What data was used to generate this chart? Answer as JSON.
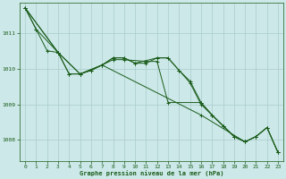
{
  "title": "Graphe pression niveau de la mer (hPa)",
  "background_color": "#cce8e8",
  "grid_color": "#aacccc",
  "line_color": "#1a5c1a",
  "xlim": [
    -0.5,
    23.5
  ],
  "ylim": [
    1007.4,
    1011.85
  ],
  "yticks": [
    1008,
    1009,
    1010,
    1011
  ],
  "xticks": [
    0,
    1,
    2,
    3,
    4,
    5,
    6,
    7,
    8,
    9,
    10,
    11,
    12,
    13,
    14,
    15,
    16,
    17,
    18,
    19,
    20,
    21,
    22,
    23
  ],
  "series": [
    [
      1011.7,
      1011.1,
      null,
      null,
      null,
      null,
      null,
      null,
      null,
      null,
      null,
      null,
      null,
      null,
      null,
      null,
      null,
      null,
      null,
      null,
      null,
      null,
      null,
      null
    ],
    [
      1011.7,
      null,
      1010.5,
      1010.45,
      1009.85,
      1009.85,
      1010.0,
      1010.1,
      1010.3,
      1010.3,
      1010.2,
      1010.2,
      1010.3,
      1010.3,
      1009.95,
      1009.6,
      1009.0,
      1008.7,
      1008.4,
      1008.1,
      1007.95,
      1008.1,
      1008.35,
      1007.65
    ],
    [
      1011.7,
      null,
      null,
      1010.45,
      1009.85,
      1009.85,
      1010.0,
      1010.1,
      1010.3,
      1010.3,
      1010.2,
      1010.2,
      1010.3,
      1010.3,
      1009.95,
      1009.6,
      1009.0,
      1008.7,
      1008.4,
      1008.1,
      1007.95,
      1008.1,
      1008.35,
      1007.65
    ],
    [
      1011.7,
      null,
      null,
      1010.45,
      1009.85,
      1009.85,
      1010.0,
      1010.1,
      1010.3,
      1010.3,
      1010.2,
      1010.2,
      1010.3,
      1010.3,
      1009.95,
      1009.6,
      1009.0,
      1008.7,
      1008.4,
      1008.1,
      1007.95,
      1008.1,
      1008.35,
      1007.65
    ]
  ],
  "series2": {
    "line1_straight": [
      [
        0,
        1011.7
      ],
      [
        1,
        1011.1
      ],
      [
        2,
        1010.5
      ],
      [
        3,
        1010.45
      ],
      [
        4,
        1009.85
      ],
      [
        5,
        1009.85
      ],
      [
        6,
        1009.95
      ],
      [
        7,
        1010.1
      ],
      [
        8,
        1010.3
      ],
      [
        9,
        1010.3
      ],
      [
        10,
        1010.15
      ],
      [
        11,
        1010.15
      ],
      [
        12,
        1010.3
      ],
      [
        13,
        1010.3
      ],
      [
        14,
        1009.95
      ],
      [
        15,
        1009.6
      ],
      [
        16,
        1009.0
      ],
      [
        17,
        1008.7
      ],
      [
        18,
        1008.4
      ],
      [
        19,
        1008.1
      ],
      [
        20,
        1007.95
      ],
      [
        21,
        1008.1
      ],
      [
        22,
        1008.35
      ],
      [
        23,
        1007.65
      ]
    ],
    "line2_top": [
      [
        0,
        1011.7
      ],
      [
        1,
        1011.1
      ],
      [
        3,
        1010.45
      ],
      [
        5,
        1009.85
      ],
      [
        7,
        1010.1
      ],
      [
        16,
        1008.7
      ],
      [
        20,
        1007.95
      ]
    ],
    "line3_wiggle": [
      [
        0,
        1011.7
      ],
      [
        3,
        1010.45
      ],
      [
        4,
        1009.85
      ],
      [
        5,
        1009.85
      ],
      [
        6,
        1009.95
      ],
      [
        7,
        1010.1
      ],
      [
        8,
        1010.3
      ],
      [
        9,
        1010.3
      ],
      [
        10,
        1010.15
      ],
      [
        12,
        1010.3
      ],
      [
        13,
        1010.3
      ],
      [
        14,
        1009.95
      ],
      [
        15,
        1009.65
      ],
      [
        16,
        1009.05
      ],
      [
        17,
        1008.7
      ],
      [
        18,
        1008.4
      ],
      [
        19,
        1008.1
      ],
      [
        20,
        1007.95
      ],
      [
        21,
        1008.1
      ],
      [
        22,
        1008.35
      ],
      [
        23,
        1007.65
      ]
    ],
    "line4_mid": [
      [
        0,
        1011.7
      ],
      [
        3,
        1010.45
      ],
      [
        5,
        1009.85
      ],
      [
        7,
        1010.1
      ],
      [
        8,
        1010.25
      ],
      [
        9,
        1010.25
      ],
      [
        11,
        1010.2
      ],
      [
        12,
        1010.2
      ],
      [
        13,
        1009.05
      ],
      [
        16,
        1009.05
      ],
      [
        17,
        1008.7
      ],
      [
        18,
        1008.4
      ],
      [
        19,
        1008.1
      ],
      [
        20,
        1007.95
      ],
      [
        21,
        1008.1
      ],
      [
        22,
        1008.35
      ],
      [
        23,
        1007.65
      ]
    ]
  }
}
